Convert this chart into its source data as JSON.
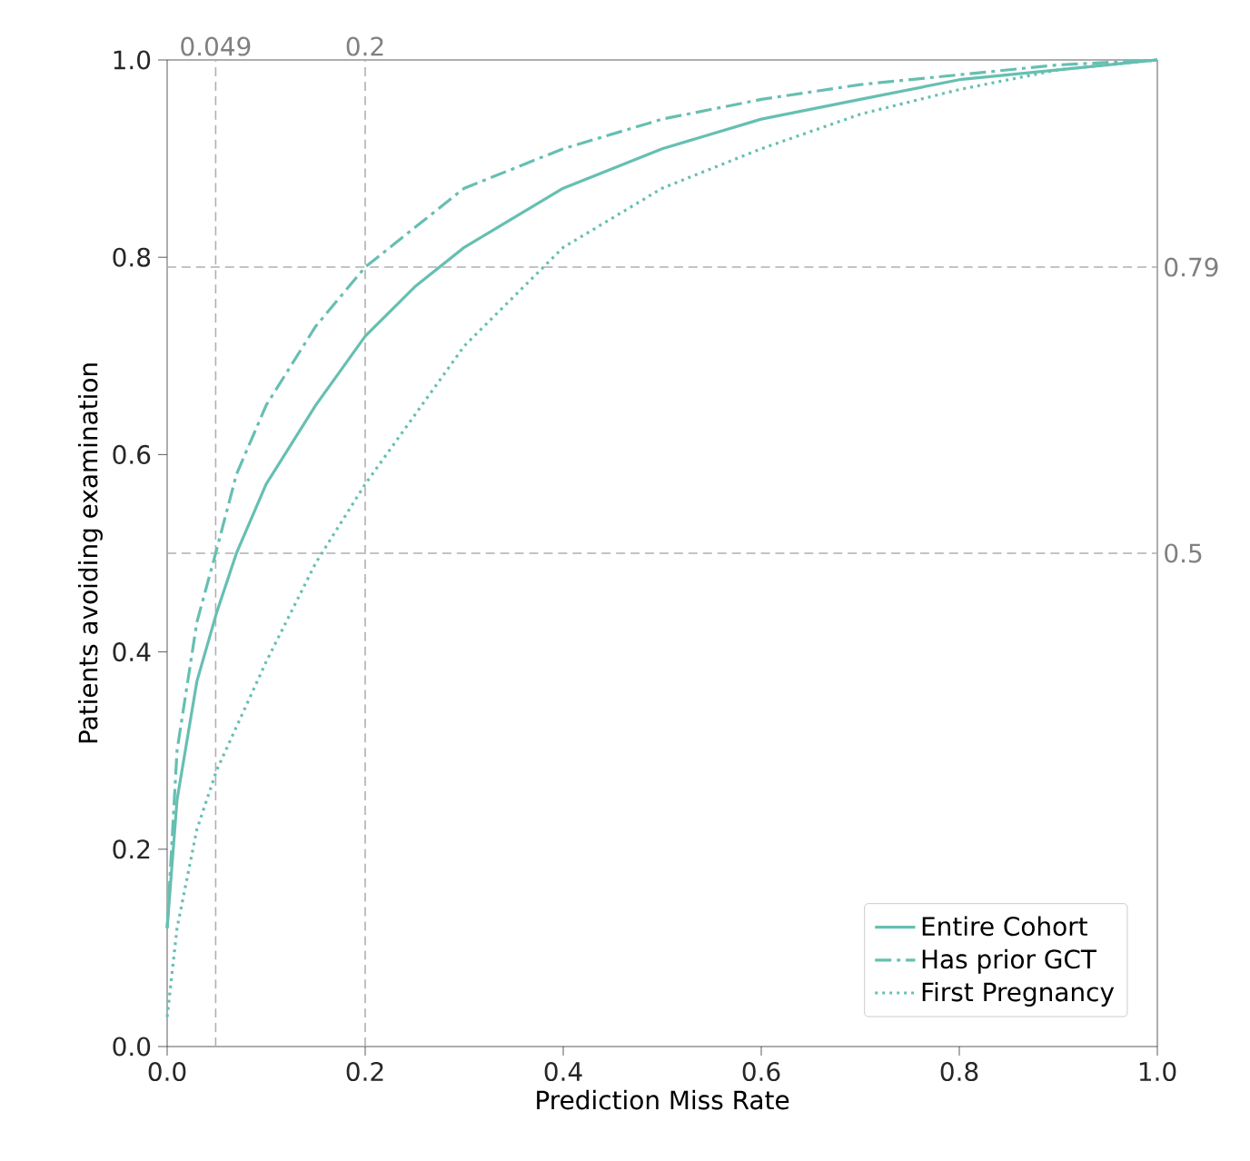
{
  "chart_data": {
    "type": "line",
    "xlabel": "Prediction Miss Rate",
    "ylabel": "Patients avoiding examination",
    "xlim": [
      0,
      1
    ],
    "ylim": [
      0,
      1
    ],
    "xticks": [
      {
        "value": 0,
        "label": "0.0"
      },
      0.2,
      0.4,
      0.6,
      0.8,
      {
        "value": 1,
        "label": "1.0"
      }
    ],
    "yticks": [
      {
        "value": 0,
        "label": "0.0"
      },
      0.2,
      0.4,
      0.6,
      0.8,
      {
        "value": 1,
        "label": "1.0"
      }
    ],
    "grid": false,
    "legend": "bottom right",
    "marker": "none",
    "ref_lines": [
      {
        "axis": "x",
        "value": 0.049,
        "label": "0.049",
        "color": "#b0b0b0",
        "line_style": "dashed"
      },
      {
        "axis": "x",
        "value": 0.2,
        "label": "0.2",
        "color": "#b0b0b0",
        "line_style": "dashed"
      },
      {
        "axis": "y",
        "value": 0.79,
        "label": "0.79",
        "color": "#b0b0b0",
        "line_style": "dashed"
      },
      {
        "axis": "y",
        "value": 0.5,
        "label": "0.5",
        "color": "#b0b0b0",
        "line_style": "dashed"
      }
    ],
    "series": [
      {
        "name": "Entire Cohort",
        "color": "#66bfb2",
        "line_style": "solid",
        "x": [
          0,
          0.01,
          0.03,
          0.05,
          0.07,
          0.1,
          0.15,
          0.2,
          0.25,
          0.3,
          0.4,
          0.5,
          0.6,
          0.7,
          0.8,
          0.9,
          1
        ],
        "values": [
          0.12,
          0.25,
          0.37,
          0.44,
          0.5,
          0.57,
          0.65,
          0.72,
          0.77,
          0.81,
          0.87,
          0.91,
          0.94,
          0.96,
          0.98,
          0.99,
          1
        ]
      },
      {
        "name": "Has prior GCT",
        "color": "#66bfb2",
        "line_style": "dashdot",
        "x": [
          0,
          0.01,
          0.03,
          0.049,
          0.07,
          0.1,
          0.15,
          0.2,
          0.25,
          0.3,
          0.4,
          0.5,
          0.6,
          0.7,
          0.8,
          0.9,
          1
        ],
        "values": [
          0.12,
          0.3,
          0.43,
          0.5,
          0.58,
          0.65,
          0.73,
          0.79,
          0.83,
          0.87,
          0.91,
          0.94,
          0.96,
          0.975,
          0.985,
          0.995,
          1
        ]
      },
      {
        "name": "First Pregnancy",
        "color": "#66bfb2",
        "line_style": "dotted",
        "x": [
          0,
          0.01,
          0.03,
          0.05,
          0.1,
          0.15,
          0.2,
          0.25,
          0.3,
          0.35,
          0.4,
          0.5,
          0.6,
          0.7,
          0.8,
          0.9,
          1
        ],
        "values": [
          0.03,
          0.12,
          0.22,
          0.28,
          0.39,
          0.49,
          0.57,
          0.64,
          0.71,
          0.76,
          0.81,
          0.87,
          0.91,
          0.945,
          0.97,
          0.99,
          1
        ]
      }
    ]
  }
}
